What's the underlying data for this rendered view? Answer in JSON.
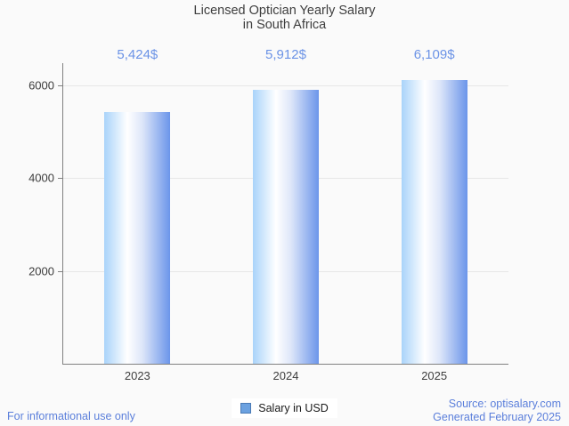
{
  "title": {
    "line1": "Licensed Optician Yearly Salary",
    "line2": "in South Africa"
  },
  "chart_data": {
    "type": "bar",
    "title": "Licensed Optician Yearly Salary in South Africa",
    "categories": [
      "2023",
      "2024",
      "2025"
    ],
    "values": [
      5424,
      5912,
      6109
    ],
    "value_labels": [
      "5,424$",
      "5,912$",
      "6,109$"
    ],
    "series_name": "Salary in USD",
    "xlabel": "",
    "ylabel": "",
    "yticks": [
      2000,
      4000,
      6000
    ],
    "ylim": [
      0,
      6480
    ],
    "grid": true,
    "legend_position": "bottom-center",
    "bar_gradient": [
      "#a9d3fa",
      "#ffffff",
      "#6b95ea"
    ]
  },
  "legend": {
    "label": "Salary in USD",
    "swatch_color": "#6ba1e0",
    "swatch_border": "#4a7ab5"
  },
  "footer": {
    "left": "For informational use only",
    "source": "Source: optisalary.com",
    "generated": "Generated February 2025"
  },
  "colors": {
    "background": "#fafafa",
    "title_text": "#3e3e3e",
    "axis_line": "#808080",
    "gridline": "#e7e7e7",
    "value_label_blue": "#6b93e6",
    "footer_blue": "#5b7fdb"
  }
}
